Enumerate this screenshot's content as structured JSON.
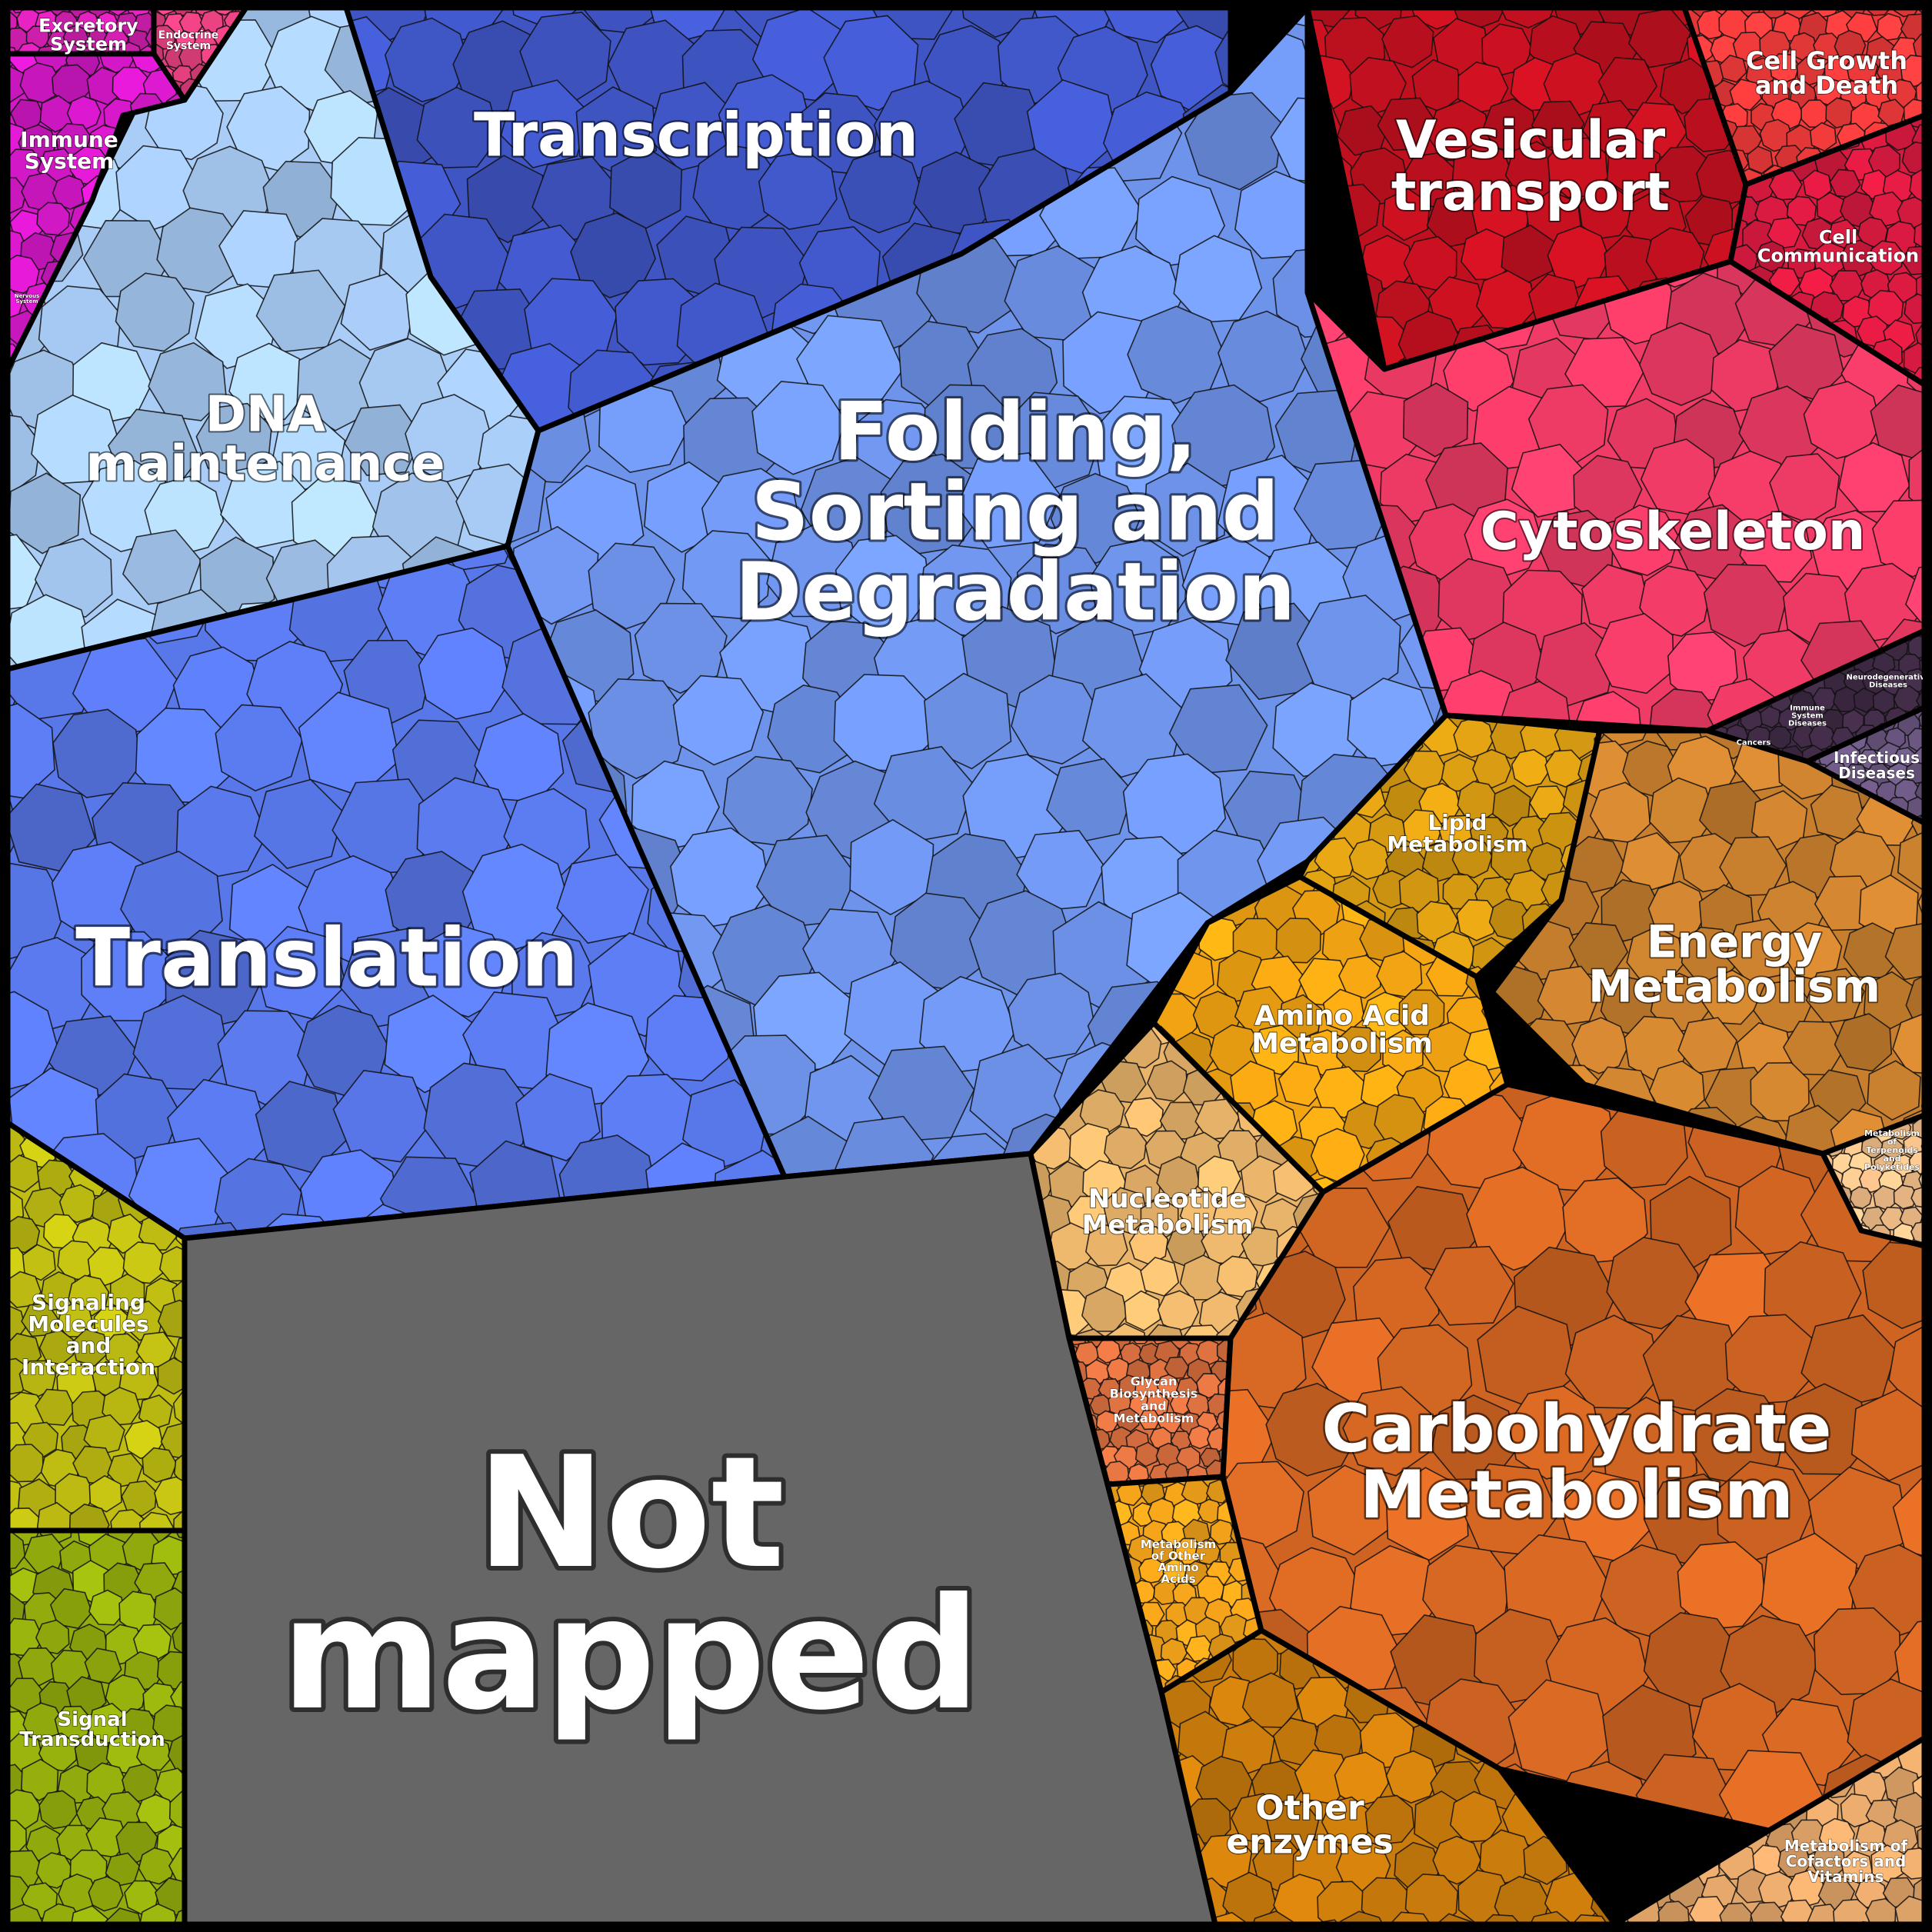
{
  "title": "",
  "colors": {
    "transcription": "#3f55c4",
    "dna_maintenance": "#a9cdf7",
    "folding": "#6e93ea",
    "translation": "#5877e8",
    "vesicular": "#c0101f",
    "cytoskeleton": "#ef3b66",
    "cell_growth": "#ee3a3a",
    "cell_communication": "#d81a40",
    "immune_system": "#d418c8",
    "excretory_system": "#d21fb0",
    "endocrine_system": "#e4407f",
    "lipid": "#d69a12",
    "energy": "#c77f2e",
    "amino_acid": "#f2a412",
    "nucleotide": "#eab56b",
    "glycan": "#db7040",
    "carbohydrate": "#cf6422",
    "other_aa": "#f3a31a",
    "other_enzymes": "#c97b0c",
    "cofactors": "#e3a66a",
    "terpenoids": "#f5c08a",
    "signaling": "#bfbd12",
    "signal_transduction": "#93ac0d",
    "not_mapped": "#666666",
    "diseases": "#3f2a45",
    "infectious": "#6a5680"
  },
  "labels": {
    "transcription": "Transcription",
    "dna_maintenance": [
      "DNA",
      "maintenance"
    ],
    "folding": [
      "Folding,",
      "Sorting and",
      "Degradation"
    ],
    "translation": "Translation",
    "vesicular": [
      "Vesicular",
      "transport"
    ],
    "cytoskeleton": "Cytoskeleton",
    "cell_growth": [
      "Cell Growth",
      "and Death"
    ],
    "cell_communication": [
      "Cell",
      "Communication"
    ],
    "immune_system": [
      "Immune",
      "System"
    ],
    "excretory_system": [
      "Excretory",
      "System"
    ],
    "endocrine_system": [
      "Endocrine",
      "System"
    ],
    "nervous_system": [
      "Nervous",
      "System"
    ],
    "lipid": [
      "Lipid",
      "Metabolism"
    ],
    "energy": [
      "Energy",
      "Metabolism"
    ],
    "amino_acid": [
      "Amino Acid",
      "Metabolism"
    ],
    "nucleotide": [
      "Nucleotide",
      "Metabolism"
    ],
    "glycan": [
      "Glycan",
      "Biosynthesis",
      "and",
      "Metabolism"
    ],
    "carbohydrate": [
      "Carbohydrate",
      "Metabolism"
    ],
    "other_aa": [
      "Metabolism",
      "of Other",
      "Amino",
      "Acids"
    ],
    "other_enzymes": [
      "Other",
      "enzymes"
    ],
    "cofactors": [
      "Metabolism of",
      "Cofactors and",
      "Vitamins"
    ],
    "terpenoids": [
      "Metabolism",
      "of",
      "Terpenoids",
      "and",
      "Polyketides"
    ],
    "signaling": [
      "Signaling",
      "Molecules",
      "and",
      "Interaction"
    ],
    "signal_transduction": [
      "Signal",
      "Transduction"
    ],
    "not_mapped": [
      "Not",
      "mapped"
    ],
    "neurodegenerative": [
      "Neurodegenerative",
      "Diseases"
    ],
    "immune_diseases": [
      "Immune",
      "System",
      "Diseases"
    ],
    "cancers": "Cancers",
    "infectious": [
      "Infectious",
      "Diseases"
    ]
  }
}
